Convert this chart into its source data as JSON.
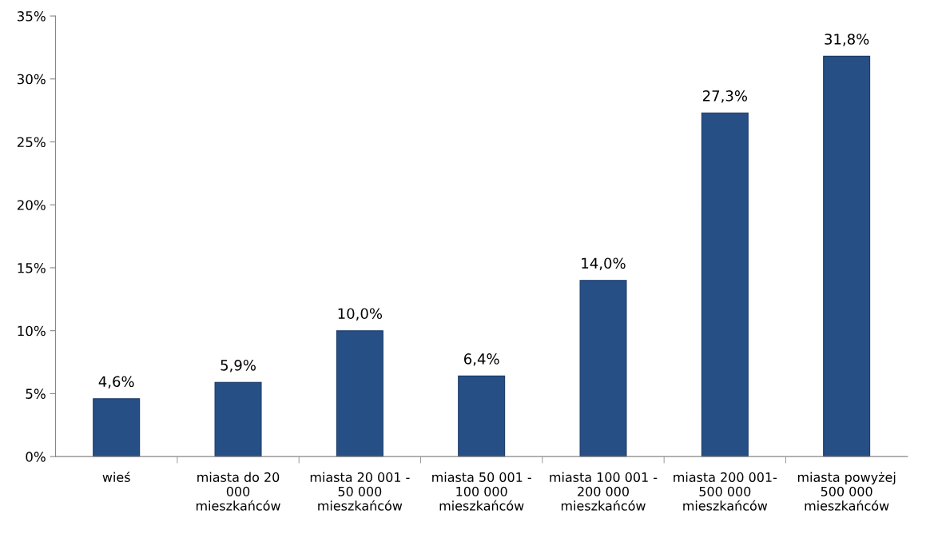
{
  "chart_data": {
    "type": "bar",
    "categories": [
      "wieś",
      "miasta do 20\n000\nmieszkańców",
      "miasta 20 001 -\n50 000\nmieszkańców",
      "miasta 50 001 -\n100 000\nmieszkańców",
      "miasta 100 001 -\n200 000\nmieszkańców",
      "miasta 200 001-\n500 000\nmieszkańców",
      "miasta powyżej\n500 000\nmieszkańców"
    ],
    "values": [
      4.6,
      5.9,
      10.0,
      6.4,
      14.0,
      27.3,
      31.8
    ],
    "value_labels": [
      "4,6%",
      "5,9%",
      "10,0%",
      "6,4%",
      "14,0%",
      "27,3%",
      "31,8%"
    ],
    "color": "#264f86",
    "ylim": [
      0,
      35
    ],
    "yticks": [
      {
        "value": 0,
        "label": "0%"
      },
      {
        "value": 5,
        "label": "5%"
      },
      {
        "value": 10,
        "label": "10%"
      },
      {
        "value": 15,
        "label": "15%"
      },
      {
        "value": 20,
        "label": "20%"
      },
      {
        "value": 25,
        "label": "25%"
      },
      {
        "value": 30,
        "label": "30%"
      },
      {
        "value": 35,
        "label": "35%"
      }
    ],
    "grid": false
  }
}
